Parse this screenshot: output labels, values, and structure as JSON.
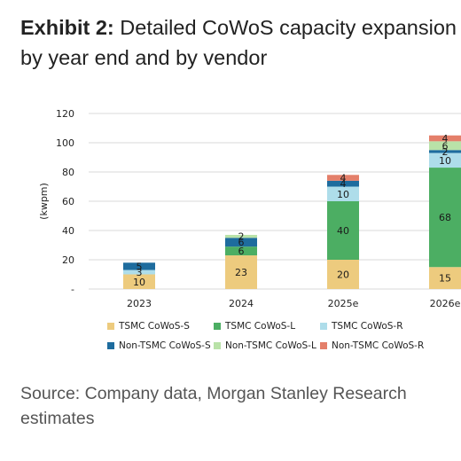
{
  "title": {
    "lead": "Exhibit 2:",
    "line1_rest": "Detailed CoWoS capacity expansion",
    "line2": "by year end and by vendor"
  },
  "source": {
    "line1": "Source: Company data, Morgan Stanley Research",
    "line2": "estimates"
  },
  "chart_data": {
    "type": "bar",
    "stacked": true,
    "categories": [
      "2023",
      "2024",
      "2025e",
      "2026e"
    ],
    "ylabel": "(kwpm)",
    "ylim": [
      0,
      120
    ],
    "yticks": [
      0,
      20,
      40,
      60,
      80,
      100,
      120
    ],
    "ytick_labels": [
      "-",
      "20",
      "40",
      "60",
      "80",
      "100",
      "120"
    ],
    "grid": true,
    "legend_position": "bottom",
    "series": [
      {
        "name": "TSMC CoWoS-S",
        "color": "#EDCB7E",
        "values": [
          10,
          23,
          20,
          15
        ]
      },
      {
        "name": "TSMC CoWoS-L",
        "color": "#4CAE63",
        "values": [
          0,
          6,
          40,
          68
        ]
      },
      {
        "name": "TSMC CoWoS-R",
        "color": "#AEDDEA",
        "values": [
          3,
          0,
          10,
          10
        ]
      },
      {
        "name": "Non-TSMC CoWoS-S",
        "color": "#1E6C9E",
        "values": [
          5,
          6,
          4,
          2
        ]
      },
      {
        "name": "Non-TSMC CoWoS-L",
        "color": "#B9E2A8",
        "values": [
          0,
          2,
          0,
          6
        ]
      },
      {
        "name": "Non-TSMC CoWoS-R",
        "color": "#E47F6A",
        "values": [
          0,
          0,
          4,
          4
        ]
      }
    ],
    "data_labels": [
      [
        {
          "series": 0,
          "text": "10"
        },
        {
          "series": 2,
          "text": "3"
        },
        {
          "series": 3,
          "text": "5"
        }
      ],
      [
        {
          "series": 0,
          "text": "23"
        },
        {
          "series": 1,
          "text": "6"
        },
        {
          "series": 3,
          "text": "6"
        },
        {
          "series": 4,
          "text": "2"
        }
      ],
      [
        {
          "series": 0,
          "text": "20"
        },
        {
          "series": 1,
          "text": "40"
        },
        {
          "series": 2,
          "text": "10"
        },
        {
          "series": 3,
          "text": "4"
        },
        {
          "series": 5,
          "text": "4"
        }
      ],
      [
        {
          "series": 0,
          "text": "15"
        },
        {
          "series": 1,
          "text": "68"
        },
        {
          "series": 2,
          "text": "10"
        },
        {
          "series": 3,
          "text": "2"
        },
        {
          "series": 4,
          "text": "6"
        },
        {
          "series": 5,
          "text": "4"
        }
      ]
    ]
  }
}
